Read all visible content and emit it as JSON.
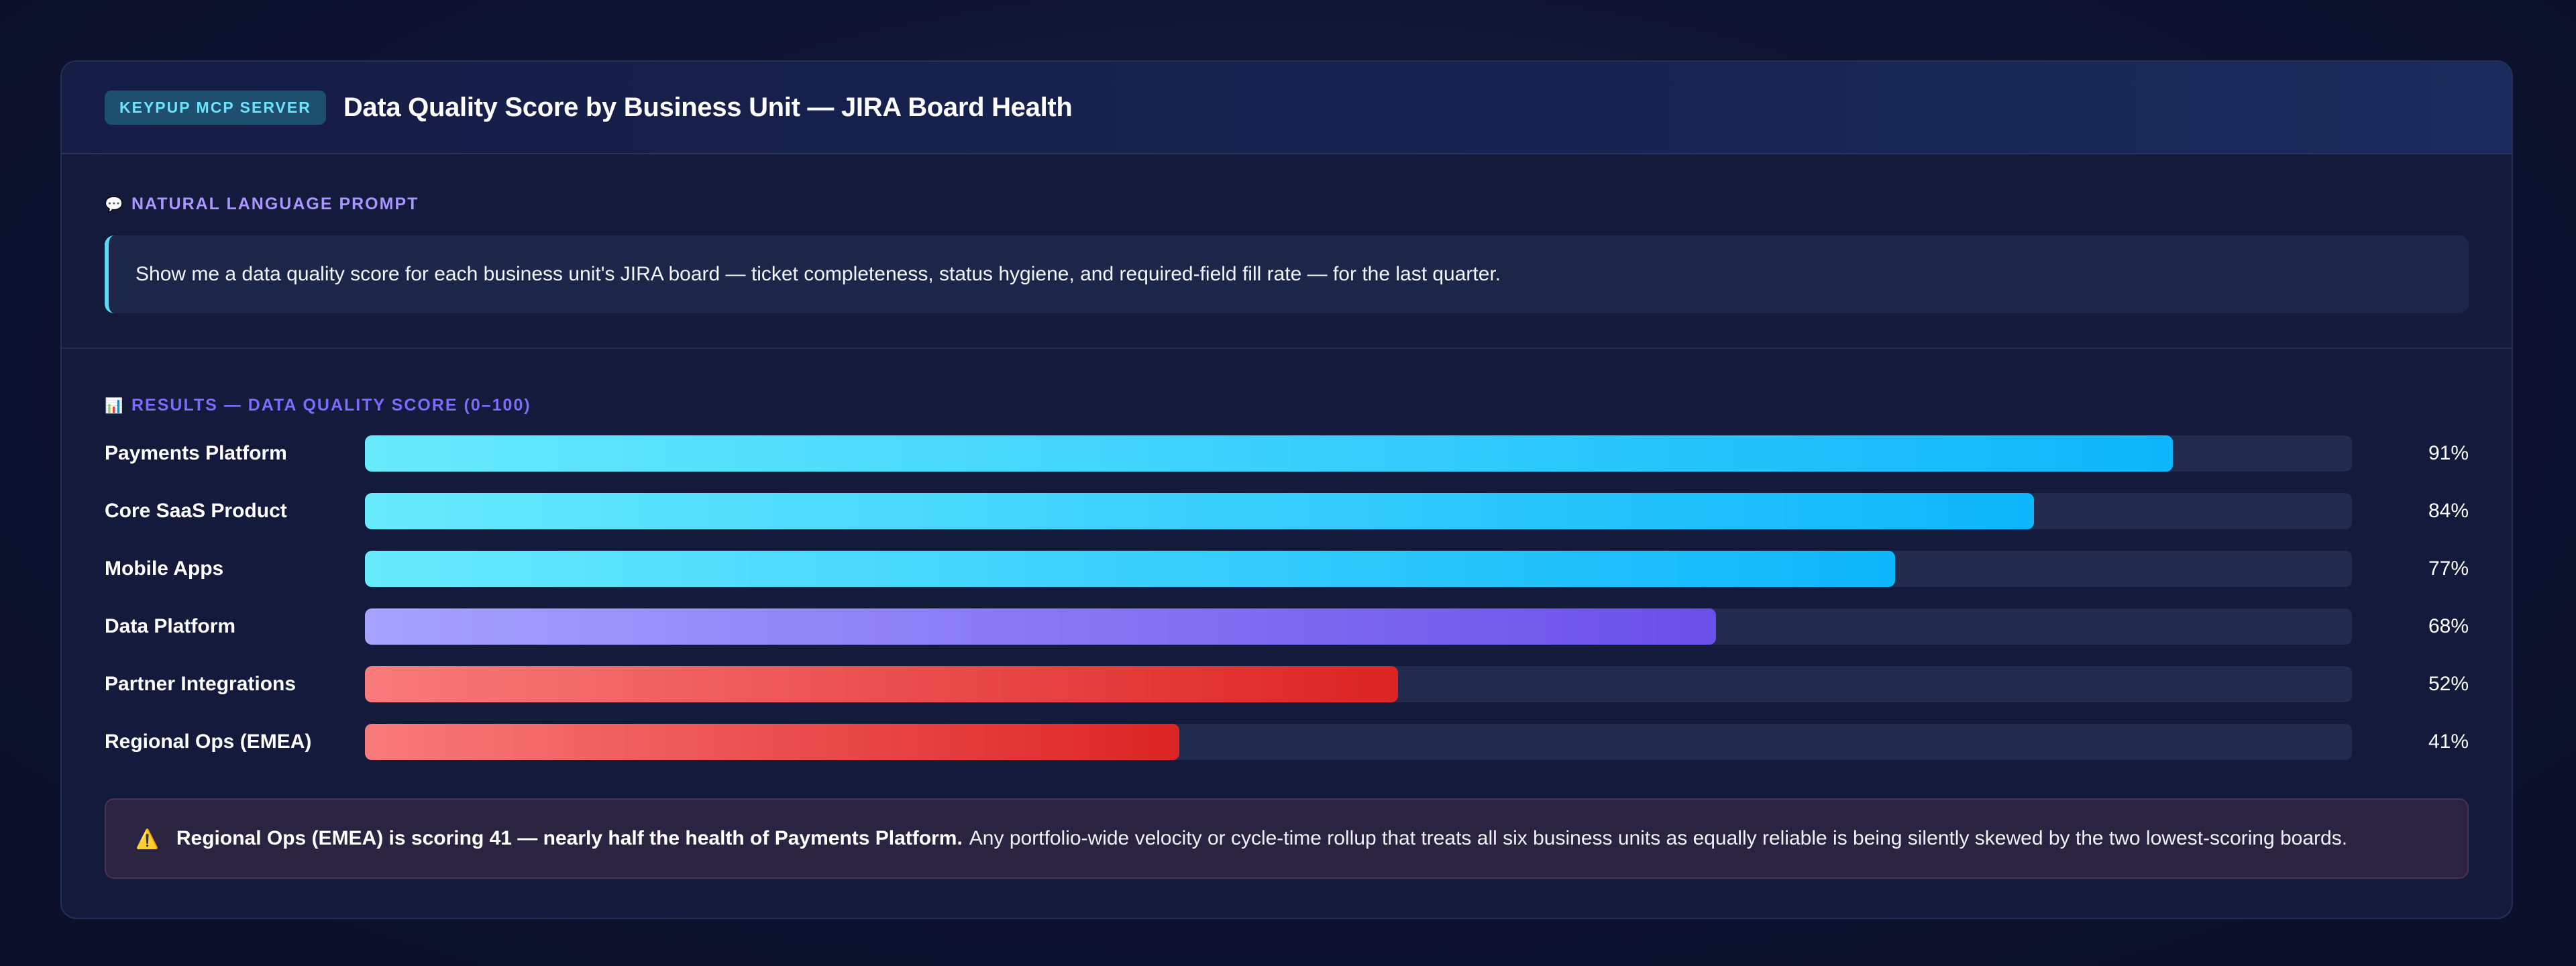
{
  "header": {
    "badge": "KEYPUP MCP SERVER",
    "title": "Data Quality Score by Business Unit — JIRA Board Health"
  },
  "prompt": {
    "icon": "speech-bubble-icon",
    "label": "NATURAL LANGUAGE PROMPT",
    "text": "Show me a data quality score for each business unit's JIRA board — ticket completeness, status hygiene, and required-field fill rate — for the last quarter."
  },
  "results": {
    "icon": "bar-chart-icon",
    "label": "RESULTS — DATA QUALITY SCORE (0–100)"
  },
  "chart_data": {
    "type": "bar",
    "orientation": "horizontal",
    "title": "RESULTS — DATA QUALITY SCORE (0–100)",
    "xlim": [
      0,
      100
    ],
    "categories": [
      "Payments Platform",
      "Core SaaS Product",
      "Mobile Apps",
      "Data Platform",
      "Partner Integrations",
      "Regional Ops (EMEA)"
    ],
    "values": [
      91,
      84,
      77,
      68,
      52,
      41
    ],
    "value_labels": [
      "91%",
      "84%",
      "77%",
      "68%",
      "52%",
      "41%"
    ],
    "bar_styles": [
      "cyan",
      "cyan",
      "cyan",
      "purple",
      "red",
      "red"
    ],
    "colors": {
      "cyan": [
        "#67eafc",
        "#0eb6fb"
      ],
      "purple": [
        "#a7a2ff",
        "#6a4fe8"
      ],
      "red": [
        "#f97b7b",
        "#dc2424"
      ],
      "track": "#222a4d"
    }
  },
  "alert": {
    "icon": "warning-icon",
    "bold": "Regional Ops (EMEA) is scoring 41 — nearly half the health of Payments Platform.",
    "text": "Any portfolio-wide velocity or cycle-time rollup that treats all six business units as equally reliable is being silently skewed by the two lowest-scoring boards."
  }
}
